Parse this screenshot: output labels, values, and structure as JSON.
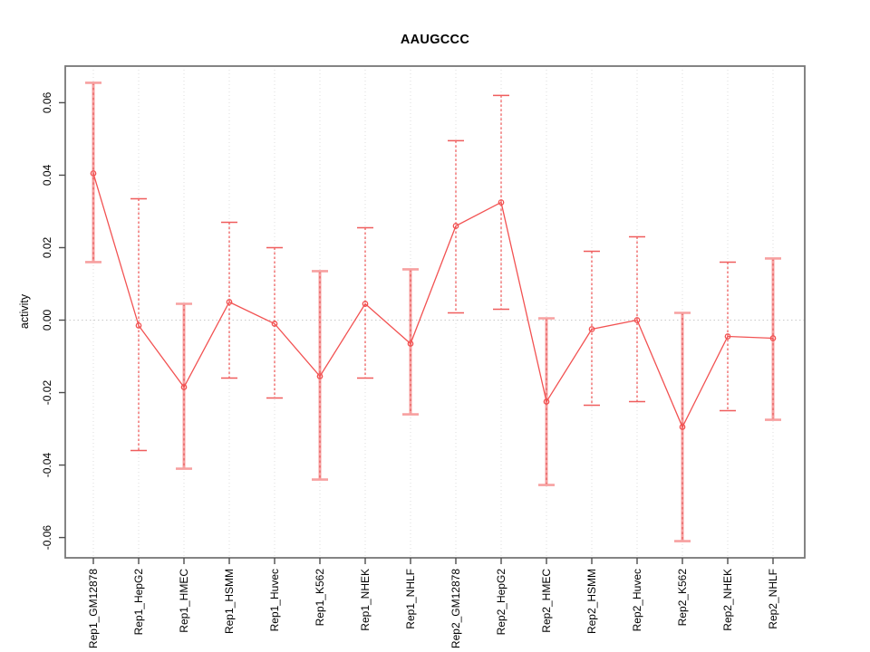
{
  "chart_data": {
    "type": "line",
    "title": "AAUGCCC",
    "xlabel": "",
    "ylabel": "activity",
    "ylim": [
      -0.0656,
      0.0701
    ],
    "yticks": [
      -0.06,
      -0.04,
      -0.02,
      0,
      0.02,
      0.04,
      0.06
    ],
    "ytick_labels": [
      "-0.06",
      "-0.04",
      "-0.02",
      "0.00",
      "0.02",
      "0.04",
      "0.06"
    ],
    "grid": "vertical dotted gridline at each category; horizontal dotted line at y=0 only",
    "legend": "none",
    "marker": "open-circle",
    "categories": [
      "Rep1_GM12878",
      "Rep1_HepG2",
      "Rep1_HMEC",
      "Rep1_HSMM",
      "Rep1_Huvec",
      "Rep1_K562",
      "Rep1_NHEK",
      "Rep1_NHLF",
      "Rep2_GM12878",
      "Rep2_HepG2",
      "Rep2_HMEC",
      "Rep2_HSMM",
      "Rep2_Huvec",
      "Rep2_K562",
      "Rep2_NHEK",
      "Rep2_NHLF"
    ],
    "series": [
      {
        "name": "activity",
        "values": [
          0.0405,
          -0.0015,
          -0.0185,
          0.005,
          -0.001,
          -0.0155,
          0.0045,
          -0.0065,
          0.026,
          0.0325,
          -0.0225,
          -0.0025,
          0.0,
          -0.0295,
          -0.0045,
          -0.005
        ],
        "ci_lower": [
          0.016,
          -0.036,
          -0.041,
          -0.016,
          -0.0215,
          -0.044,
          -0.016,
          -0.026,
          0.002,
          0.003,
          -0.0455,
          -0.0235,
          -0.0225,
          -0.061,
          -0.025,
          -0.0275
        ],
        "ci_upper": [
          0.0655,
          0.0335,
          0.0045,
          0.027,
          0.02,
          0.0135,
          0.0255,
          0.014,
          0.0495,
          0.062,
          0.0005,
          0.019,
          0.023,
          0.002,
          0.016,
          0.017
        ],
        "bar_style": [
          "thick",
          "thin",
          "thick",
          "thin",
          "thin",
          "thick",
          "thin",
          "thick",
          "thin",
          "thin",
          "thick",
          "thin",
          "thin",
          "thick",
          "thin",
          "thick"
        ]
      }
    ],
    "colors": {
      "line": "#f25252",
      "marker": "#f25252",
      "errorbar_thick": "#f7a0a0",
      "errorbar_thin": "#ef5d5d",
      "errorbar_dash": "#e34c4c",
      "grid": "#dcdcdc",
      "zero_line": "#c8c8c8",
      "frame": "#777777",
      "tick": "#4d4d4d",
      "text": "#000000"
    }
  }
}
